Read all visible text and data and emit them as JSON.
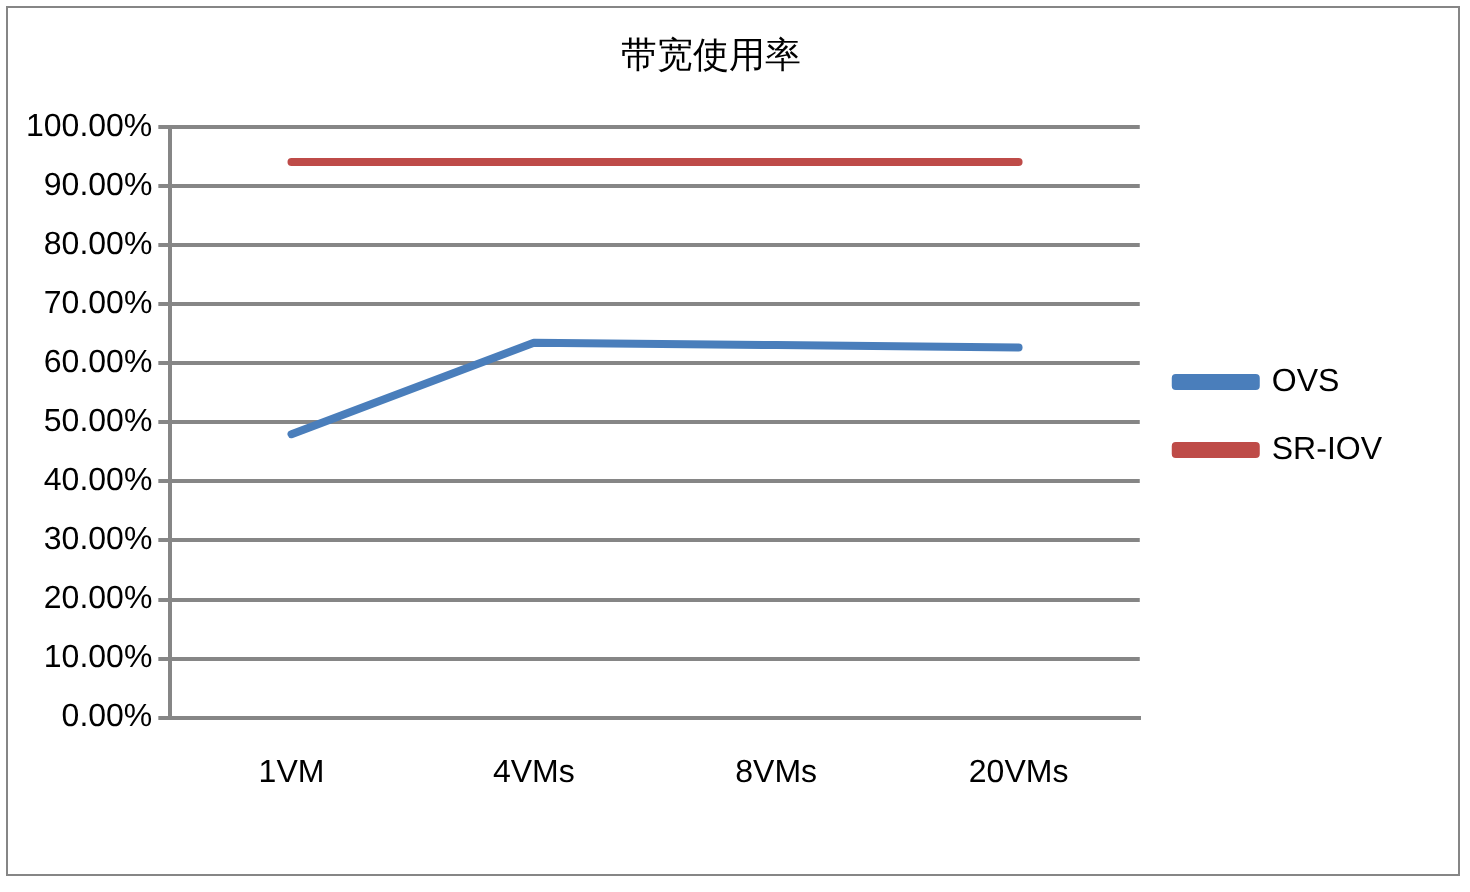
{
  "chart_data": {
    "type": "line",
    "title": "带宽使用率",
    "categories": [
      "1VM",
      "4VMs",
      "8VMs",
      "20VMs"
    ],
    "series": [
      {
        "name": "OVS",
        "color": "#4a7ebb",
        "values": [
          48.0,
          63.5,
          63.1,
          62.7
        ]
      },
      {
        "name": "SR-IOV",
        "color": "#be4b48",
        "values": [
          94.1,
          94.1,
          94.1,
          94.1
        ]
      }
    ],
    "ylim": [
      0,
      100
    ],
    "yticks": [
      {
        "value": 0,
        "label": "0.00%"
      },
      {
        "value": 10,
        "label": "10.00%"
      },
      {
        "value": 20,
        "label": "20.00%"
      },
      {
        "value": 30,
        "label": "30.00%"
      },
      {
        "value": 40,
        "label": "40.00%"
      },
      {
        "value": 50,
        "label": "50.00%"
      },
      {
        "value": 60,
        "label": "60.00%"
      },
      {
        "value": 70,
        "label": "70.00%"
      },
      {
        "value": 80,
        "label": "80.00%"
      },
      {
        "value": 90,
        "label": "90.00%"
      },
      {
        "value": 100,
        "label": "100.00%"
      }
    ],
    "grid": "y",
    "legend": "right",
    "marker": "none",
    "line_style": "solid"
  }
}
